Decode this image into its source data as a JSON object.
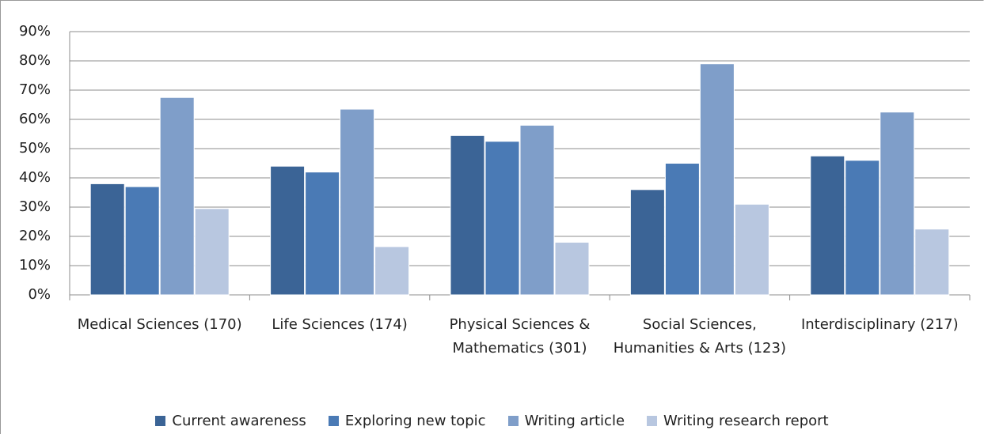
{
  "chart_data": {
    "type": "bar",
    "categories": [
      "Medical Sciences (170)",
      "Life Sciences (174)",
      "Physical Sciences & Mathematics (301)",
      "Social Sciences, Humanities & Arts (123)",
      "Interdisciplinary (217)"
    ],
    "series": [
      {
        "name": "Current awareness",
        "color": "#3b6496",
        "values": [
          38,
          44,
          54.5,
          36,
          47.5
        ]
      },
      {
        "name": "Exploring new topic",
        "color": "#4a7ab5",
        "values": [
          37,
          42,
          52.5,
          45,
          46
        ]
      },
      {
        "name": "Writing article",
        "color": "#7f9ec9",
        "values": [
          67.5,
          63.5,
          58,
          79,
          62.5
        ]
      },
      {
        "name": "Writing research report",
        "color": "#b8c7e0",
        "values": [
          29.5,
          16.5,
          18,
          31,
          22.5
        ]
      }
    ],
    "ylim": [
      0,
      90
    ],
    "yticks": [
      {
        "value": 0,
        "label": "0%"
      },
      {
        "value": 10,
        "label": "10%"
      },
      {
        "value": 20,
        "label": "20%"
      },
      {
        "value": 30,
        "label": "30%"
      },
      {
        "value": 40,
        "label": "40%"
      },
      {
        "value": 50,
        "label": "50%"
      },
      {
        "value": 60,
        "label": "60%"
      },
      {
        "value": 70,
        "label": "70%"
      },
      {
        "value": 80,
        "label": "80%"
      },
      {
        "value": 90,
        "label": "90%"
      }
    ],
    "grid": true,
    "legend": "bottom"
  }
}
